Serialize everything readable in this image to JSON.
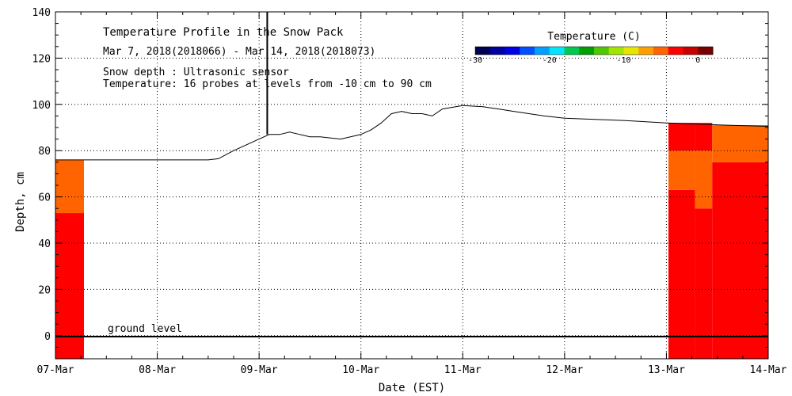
{
  "chart_data": {
    "type": "line",
    "title": "Temperature Profile in the Snow Pack",
    "subtitle": "Mar  7, 2018(2018066) - Mar 14, 2018(2018073)",
    "annotations": [
      "Snow depth : Ultrasonic sensor",
      "Temperature: 16 probes at levels from -10 cm to 90 cm"
    ],
    "ground_label": "ground level",
    "xlabel": "Date (EST)",
    "ylabel": "Depth, cm",
    "x_ticks": [
      "07-Mar",
      "08-Mar",
      "09-Mar",
      "10-Mar",
      "11-Mar",
      "12-Mar",
      "13-Mar",
      "14-Mar"
    ],
    "xlim": [
      0,
      7
    ],
    "ylim": [
      -10,
      140
    ],
    "y_ticks": [
      "0",
      "20",
      "40",
      "60",
      "80",
      "100",
      "120",
      "140"
    ],
    "grid": true,
    "colorbar": {
      "title": "Temperature (C)",
      "range": [
        -30,
        2
      ],
      "tick_values": [
        -30,
        -20,
        -10,
        0
      ],
      "tick_labels": [
        "-30",
        "-20",
        "-10",
        "0"
      ],
      "colors": [
        "#000050",
        "#0000a0",
        "#0000e6",
        "#0050ff",
        "#00a0ff",
        "#00e6ff",
        "#00c850",
        "#00a000",
        "#50c800",
        "#a0e600",
        "#e6e600",
        "#ffa000",
        "#ff6400",
        "#ff0000",
        "#c80000",
        "#780000"
      ]
    },
    "series": [
      {
        "values": [
          [
            0,
            76
          ],
          [
            0.5,
            76
          ],
          [
            1,
            76
          ],
          [
            1.3,
            76
          ],
          [
            1.5,
            76
          ],
          [
            1.6,
            76.5
          ],
          [
            1.75,
            80
          ],
          [
            1.9,
            83
          ],
          [
            2,
            85
          ],
          [
            2.1,
            87
          ],
          [
            2.2,
            87
          ],
          [
            2.3,
            88
          ],
          [
            2.4,
            87
          ],
          [
            2.5,
            86
          ],
          [
            2.6,
            86
          ],
          [
            2.8,
            85
          ],
          [
            3,
            87
          ],
          [
            3.1,
            89
          ],
          [
            3.2,
            92
          ],
          [
            3.3,
            96
          ],
          [
            3.4,
            97
          ],
          [
            3.5,
            96
          ],
          [
            3.6,
            96
          ],
          [
            3.7,
            95
          ],
          [
            3.8,
            98
          ],
          [
            4,
            99.5
          ],
          [
            4.2,
            99
          ],
          [
            4.5,
            97
          ],
          [
            4.8,
            95
          ],
          [
            5,
            94
          ],
          [
            5.3,
            93.5
          ],
          [
            5.6,
            93
          ],
          [
            6,
            92
          ],
          [
            6.3,
            91.5
          ],
          [
            6.6,
            91
          ],
          [
            7,
            90.5
          ]
        ]
      }
    ],
    "spike": {
      "x": 2.08,
      "y_top": 140,
      "y_base": 87
    },
    "temperature_regions": [
      {
        "x_start": 0,
        "x_end": 0.28,
        "bands": [
          {
            "from": -10,
            "to": 53,
            "color": "#ff0000"
          },
          {
            "from": 53,
            "to": 76,
            "color": "#ff6400"
          }
        ]
      },
      {
        "x_start": 6.02,
        "x_end": 6.28,
        "bands": [
          {
            "from": -10,
            "to": 63,
            "color": "#ff0000"
          },
          {
            "from": 63,
            "to": 80,
            "color": "#ff6400"
          },
          {
            "from": 80,
            "to": 92,
            "color": "#ff0000"
          }
        ]
      },
      {
        "x_start": 6.28,
        "x_end": 6.45,
        "bands": [
          {
            "from": -10,
            "to": 55,
            "color": "#ff0000"
          },
          {
            "from": 55,
            "to": 80,
            "color": "#ff6400"
          },
          {
            "from": 80,
            "to": 92,
            "color": "#ff0000"
          }
        ]
      },
      {
        "x_start": 6.45,
        "x_end": 7,
        "bands": [
          {
            "from": -10,
            "to": 75,
            "color": "#ff0000"
          },
          {
            "from": 75,
            "to": 91,
            "color": "#ff6400"
          }
        ]
      }
    ]
  }
}
